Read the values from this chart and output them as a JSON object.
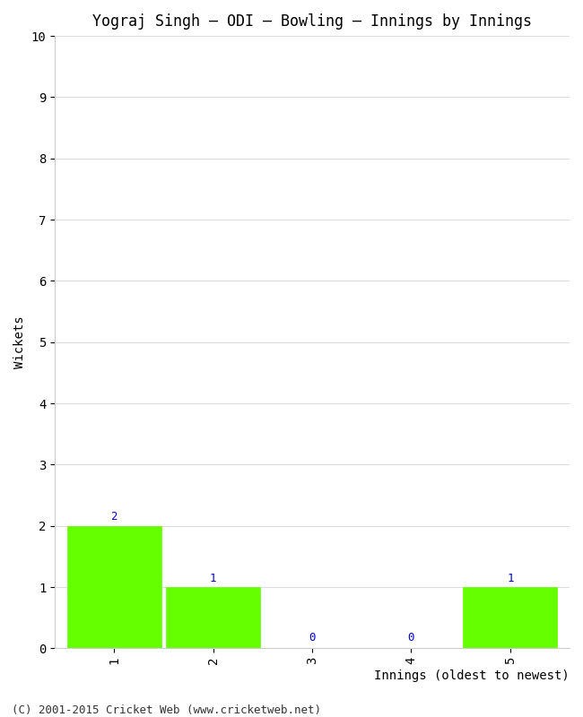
{
  "title": "Yograj Singh – ODI – Bowling – Innings by Innings",
  "xlabel": "Innings (oldest to newest)",
  "ylabel": "Wickets",
  "categories": [
    1,
    2,
    3,
    4,
    5
  ],
  "values": [
    2,
    1,
    0,
    0,
    1
  ],
  "bar_color": "#66ff00",
  "bar_edge_color": "#66ff00",
  "ylim": [
    0,
    10
  ],
  "yticks": [
    0,
    1,
    2,
    3,
    4,
    5,
    6,
    7,
    8,
    9,
    10
  ],
  "xticks": [
    1,
    2,
    3,
    4,
    5
  ],
  "label_color": "#0000cc",
  "background_color": "#ffffff",
  "grid_color": "#dddddd",
  "title_fontsize": 12,
  "axis_label_fontsize": 10,
  "tick_fontsize": 10,
  "annotation_fontsize": 9,
  "footer": "(C) 2001-2015 Cricket Web (www.cricketweb.net)",
  "footer_fontsize": 9
}
